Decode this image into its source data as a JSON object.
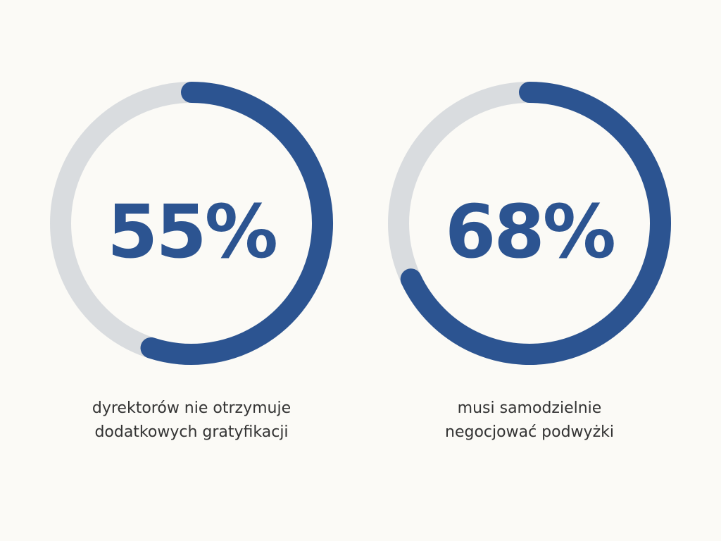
{
  "chart_data": [
    {
      "type": "donut",
      "values": [
        55
      ],
      "value_labels": [
        "55%"
      ],
      "color": "#2c5491",
      "track_color": "#d9dcdf",
      "title": [
        "dyrektorów nie otrzymuje",
        "dodatkowych gratyfikacji"
      ]
    },
    {
      "type": "donut",
      "values": [
        68
      ],
      "value_labels": [
        "68%"
      ],
      "color": "#2c5491",
      "track_color": "#d9dcdf",
      "title": [
        "musi samodzielnie",
        "negocjować podwyżki"
      ]
    }
  ]
}
